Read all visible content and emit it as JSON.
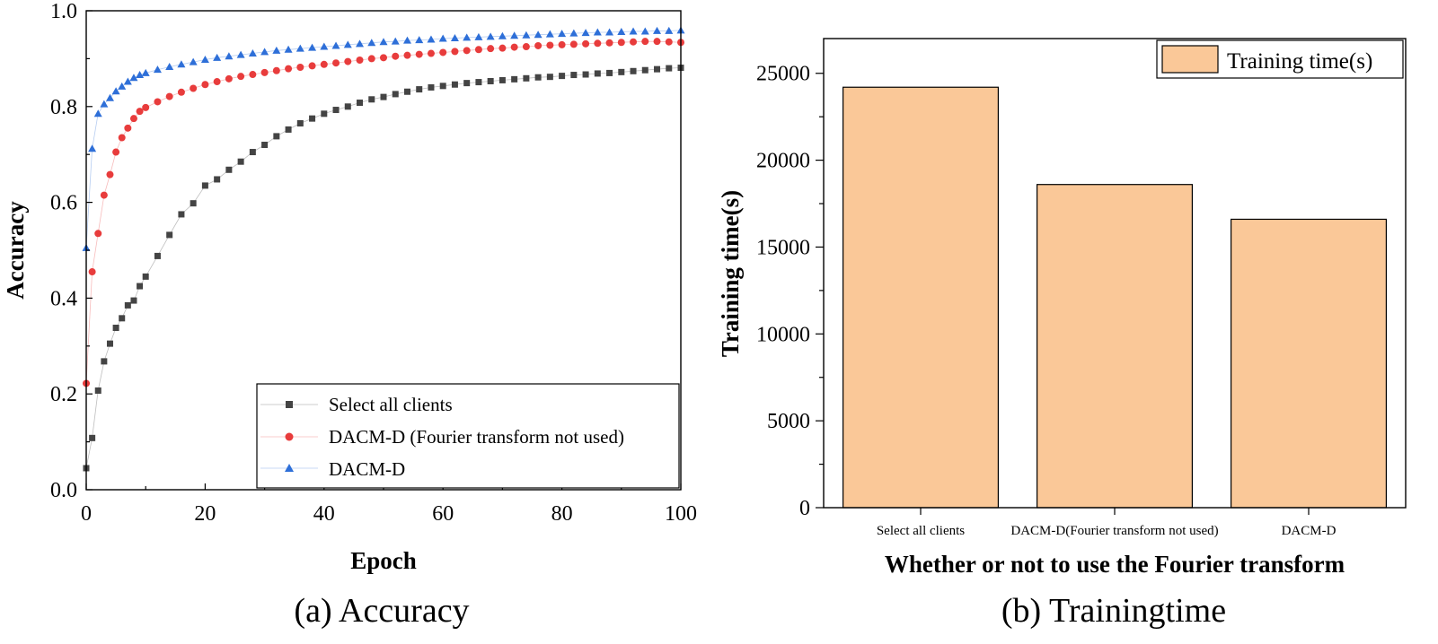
{
  "chart_data": [
    {
      "type": "line",
      "caption": "(a) Accuracy",
      "xlabel": "Epoch",
      "ylabel": "Accuracy",
      "xlim": [
        0,
        100
      ],
      "ylim": [
        0,
        1.0
      ],
      "x_ticks": [
        "0",
        "20",
        "40",
        "60",
        "80",
        "100"
      ],
      "y_ticks": [
        "0.0",
        "0.2",
        "0.4",
        "0.6",
        "0.8",
        "1.0"
      ],
      "grid": false,
      "legend_position": "bottom-right",
      "series": [
        {
          "name": "Select all clients",
          "color": "#444444",
          "marker": "square",
          "x": [
            0,
            1,
            2,
            3,
            4,
            5,
            6,
            7,
            8,
            9,
            10,
            12,
            14,
            16,
            18,
            20,
            22,
            24,
            26,
            28,
            30,
            32,
            34,
            36,
            38,
            40,
            42,
            44,
            46,
            48,
            50,
            52,
            54,
            56,
            58,
            60,
            62,
            64,
            66,
            68,
            70,
            72,
            74,
            76,
            78,
            80,
            82,
            84,
            86,
            88,
            90,
            92,
            94,
            96,
            98,
            100
          ],
          "y": [
            0.045,
            0.108,
            0.207,
            0.268,
            0.305,
            0.338,
            0.358,
            0.385,
            0.395,
            0.425,
            0.445,
            0.488,
            0.532,
            0.575,
            0.598,
            0.635,
            0.648,
            0.668,
            0.685,
            0.705,
            0.72,
            0.738,
            0.752,
            0.765,
            0.775,
            0.785,
            0.793,
            0.8,
            0.808,
            0.815,
            0.82,
            0.826,
            0.831,
            0.836,
            0.84,
            0.843,
            0.846,
            0.849,
            0.851,
            0.853,
            0.855,
            0.857,
            0.859,
            0.861,
            0.862,
            0.864,
            0.866,
            0.867,
            0.869,
            0.87,
            0.872,
            0.874,
            0.876,
            0.878,
            0.88,
            0.881
          ]
        },
        {
          "name": "DACM-D (Fourier transform not used)",
          "color": "#e83c3c",
          "marker": "circle",
          "x": [
            0,
            1,
            2,
            3,
            4,
            5,
            6,
            7,
            8,
            9,
            10,
            12,
            14,
            16,
            18,
            20,
            22,
            24,
            26,
            28,
            30,
            32,
            34,
            36,
            38,
            40,
            42,
            44,
            46,
            48,
            50,
            52,
            54,
            56,
            58,
            60,
            62,
            64,
            66,
            68,
            70,
            72,
            74,
            76,
            78,
            80,
            82,
            84,
            86,
            88,
            90,
            92,
            94,
            96,
            98,
            100
          ],
          "y": [
            0.222,
            0.455,
            0.535,
            0.615,
            0.658,
            0.705,
            0.735,
            0.755,
            0.775,
            0.79,
            0.798,
            0.81,
            0.821,
            0.83,
            0.838,
            0.846,
            0.852,
            0.858,
            0.863,
            0.867,
            0.871,
            0.875,
            0.879,
            0.882,
            0.885,
            0.888,
            0.891,
            0.894,
            0.897,
            0.9,
            0.902,
            0.905,
            0.907,
            0.909,
            0.911,
            0.913,
            0.915,
            0.917,
            0.919,
            0.921,
            0.922,
            0.924,
            0.925,
            0.927,
            0.928,
            0.929,
            0.93,
            0.931,
            0.932,
            0.933,
            0.934,
            0.935,
            0.936,
            0.936,
            0.935,
            0.934
          ]
        },
        {
          "name": "DACM-D",
          "color": "#2e6fd8",
          "marker": "triangle",
          "x": [
            0,
            1,
            2,
            3,
            4,
            5,
            6,
            7,
            8,
            9,
            10,
            12,
            14,
            16,
            18,
            20,
            22,
            24,
            26,
            28,
            30,
            32,
            34,
            36,
            38,
            40,
            42,
            44,
            46,
            48,
            50,
            52,
            54,
            56,
            58,
            60,
            62,
            64,
            66,
            68,
            70,
            72,
            74,
            76,
            78,
            80,
            82,
            84,
            86,
            88,
            90,
            92,
            94,
            96,
            98,
            100
          ],
          "y": [
            0.505,
            0.712,
            0.785,
            0.805,
            0.818,
            0.832,
            0.842,
            0.852,
            0.86,
            0.866,
            0.87,
            0.877,
            0.883,
            0.888,
            0.893,
            0.898,
            0.902,
            0.905,
            0.908,
            0.911,
            0.914,
            0.917,
            0.919,
            0.921,
            0.923,
            0.925,
            0.927,
            0.929,
            0.931,
            0.933,
            0.935,
            0.936,
            0.938,
            0.939,
            0.94,
            0.942,
            0.943,
            0.944,
            0.945,
            0.946,
            0.947,
            0.948,
            0.949,
            0.95,
            0.951,
            0.952,
            0.953,
            0.954,
            0.955,
            0.955,
            0.956,
            0.957,
            0.957,
            0.958,
            0.958,
            0.959
          ]
        }
      ]
    },
    {
      "type": "bar",
      "caption": "(b) Trainingtime",
      "xlabel": "Whether or not to use the Fourier transform",
      "ylabel": "Training time(s)",
      "ylim": [
        0,
        27000
      ],
      "y_ticks": [
        "0",
        "5000",
        "10000",
        "15000",
        "20000",
        "25000"
      ],
      "categories": [
        "Select all clients",
        "DACM-D(Fourier transform not used)",
        "DACM-D"
      ],
      "series": [
        {
          "name": "Training time(s)",
          "color": "#fac898",
          "values": [
            24200,
            18600,
            16600
          ]
        }
      ],
      "grid": false,
      "legend_position": "top-right"
    }
  ]
}
